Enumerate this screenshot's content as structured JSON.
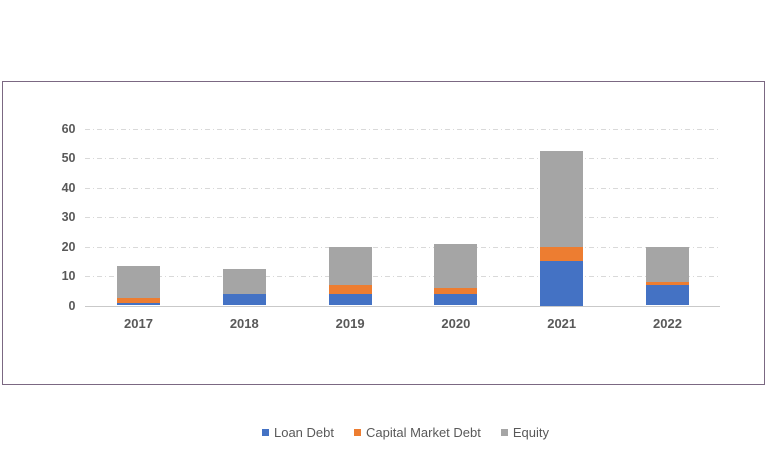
{
  "frame": {
    "border_color": "#7b6882",
    "background_color": "#ffffff"
  },
  "chart_data": {
    "type": "bar",
    "stacked": true,
    "title": "",
    "xlabel": "",
    "ylabel": "",
    "categories": [
      "2017",
      "2018",
      "2019",
      "2020",
      "2021",
      "2022"
    ],
    "series": [
      {
        "name": "Loan Debt",
        "color": "#4472C4",
        "values": [
          1,
          4,
          4,
          4,
          15,
          7
        ]
      },
      {
        "name": "Capital Market Debt",
        "color": "#ED7D31",
        "values": [
          1.5,
          0,
          3,
          2,
          5,
          1
        ]
      },
      {
        "name": "Equity",
        "color": "#A5A5A5",
        "values": [
          11,
          8.5,
          13,
          15,
          32.5,
          12
        ]
      }
    ],
    "totals": [
      13.5,
      12.5,
      20,
      21,
      52.5,
      20
    ],
    "ylim": [
      0,
      60
    ],
    "yticks": [
      0,
      10,
      20,
      30,
      40,
      50,
      60
    ],
    "grid": "horizontal-dashed",
    "gridline_color": "#d9d9d9",
    "axis_line_color": "#c9c9c9",
    "tick_label_color": "#595959",
    "legend_position": "bottom-center"
  }
}
